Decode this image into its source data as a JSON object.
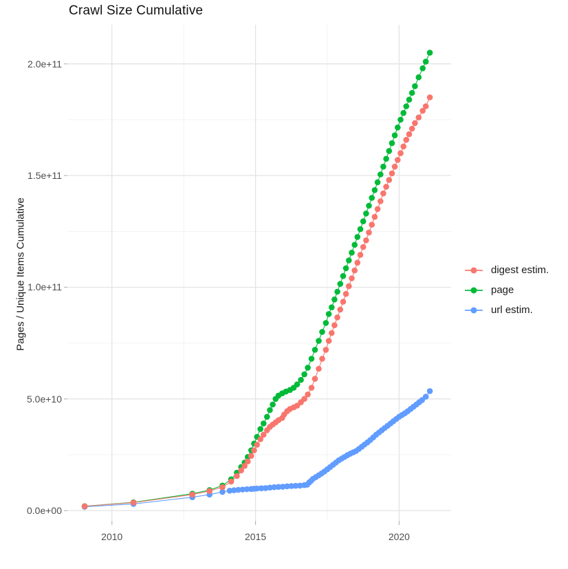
{
  "chart_data": {
    "type": "scatter",
    "title": "Crawl Size Cumulative",
    "xlabel": "",
    "ylabel": "Pages / Unique Items Cumulative",
    "grid": true,
    "legend_position": "right",
    "xlim": [
      2008.45,
      2021.81
    ],
    "ylim": [
      -5500000000.0,
      217500000000.0
    ],
    "x_ticks": [
      {
        "value": 2010,
        "label": "2010"
      },
      {
        "value": 2015,
        "label": "2015"
      },
      {
        "value": 2020,
        "label": "2020"
      }
    ],
    "x_minor": [
      2012.5,
      2017.5
    ],
    "y_ticks": [
      {
        "value": 0,
        "label": "0.0e+00"
      },
      {
        "value": 50000000000.0,
        "label": "5.0e+10"
      },
      {
        "value": 100000000000.0,
        "label": "1.0e+11"
      },
      {
        "value": 150000000000.0,
        "label": "1.5e+11"
      },
      {
        "value": 200000000000.0,
        "label": "2.0e+11"
      }
    ],
    "y_minor": [
      25000000000.0,
      75000000000.0,
      125000000000.0,
      175000000000.0
    ],
    "series": [
      {
        "name": "digest estim.",
        "color": "#F8766D",
        "points": [
          [
            2009.05,
            1950000000.0
          ],
          [
            2010.75,
            3600000000.0
          ],
          [
            2012.8,
            7200000000.0
          ],
          [
            2013.4,
            8800000000.0
          ],
          [
            2013.85,
            10500000000.0
          ],
          [
            2014.15,
            13000000000.0
          ],
          [
            2014.35,
            15500000000.0
          ],
          [
            2014.5,
            18000000000.0
          ],
          [
            2014.62,
            20000000000.0
          ],
          [
            2014.73,
            22000000000.0
          ],
          [
            2014.85,
            24500000000.0
          ],
          [
            2014.95,
            27000000000.0
          ],
          [
            2015.05,
            29500000000.0
          ],
          [
            2015.17,
            32000000000.0
          ],
          [
            2015.28,
            34000000000.0
          ],
          [
            2015.4,
            36000000000.0
          ],
          [
            2015.5,
            37500000000.0
          ],
          [
            2015.6,
            38500000000.0
          ],
          [
            2015.7,
            39500000000.0
          ],
          [
            2015.8,
            40500000000.0
          ],
          [
            2015.93,
            41500000000.0
          ],
          [
            2016.0,
            43000000000.0
          ],
          [
            2016.1,
            44500000000.0
          ],
          [
            2016.2,
            45500000000.0
          ],
          [
            2016.33,
            46200000000.0
          ],
          [
            2016.45,
            47000000000.0
          ],
          [
            2016.58,
            48500000000.0
          ],
          [
            2016.7,
            50000000000.0
          ],
          [
            2016.82,
            52000000000.0
          ],
          [
            2016.95,
            55000000000.0
          ],
          [
            2017.07,
            59000000000.0
          ],
          [
            2017.2,
            63500000000.0
          ],
          [
            2017.32,
            68000000000.0
          ],
          [
            2017.45,
            72000000000.0
          ],
          [
            2017.55,
            76000000000.0
          ],
          [
            2017.65,
            79500000000.0
          ],
          [
            2017.75,
            83000000000.0
          ],
          [
            2017.85,
            86500000000.0
          ],
          [
            2017.95,
            90000000000.0
          ],
          [
            2018.05,
            93500000000.0
          ],
          [
            2018.15,
            97000000000.0
          ],
          [
            2018.25,
            100500000000.0
          ],
          [
            2018.35,
            104000000000.0
          ],
          [
            2018.45,
            107500000000.0
          ],
          [
            2018.55,
            111000000000.0
          ],
          [
            2018.65,
            114500000000.0
          ],
          [
            2018.75,
            118000000000.0
          ],
          [
            2018.85,
            121000000000.0
          ],
          [
            2018.95,
            124500000000.0
          ],
          [
            2019.05,
            128000000000.0
          ],
          [
            2019.15,
            131500000000.0
          ],
          [
            2019.25,
            135000000000.0
          ],
          [
            2019.35,
            138500000000.0
          ],
          [
            2019.45,
            142000000000.0
          ],
          [
            2019.55,
            145000000000.0
          ],
          [
            2019.65,
            148000000000.0
          ],
          [
            2019.75,
            151000000000.0
          ],
          [
            2019.85,
            154000000000.0
          ],
          [
            2019.95,
            157000000000.0
          ],
          [
            2020.05,
            160000000000.0
          ],
          [
            2020.15,
            163000000000.0
          ],
          [
            2020.25,
            166000000000.0
          ],
          [
            2020.35,
            168500000000.0
          ],
          [
            2020.45,
            171000000000.0
          ],
          [
            2020.55,
            173500000000.0
          ],
          [
            2020.68,
            176000000000.0
          ],
          [
            2020.82,
            179000000000.0
          ],
          [
            2020.93,
            181000000000.0
          ],
          [
            2021.07,
            185000000000.0
          ]
        ]
      },
      {
        "name": "page",
        "color": "#00BA38",
        "points": [
          [
            2009.05,
            2000000000.0
          ],
          [
            2010.75,
            3700000000.0
          ],
          [
            2012.8,
            7600000000.0
          ],
          [
            2013.4,
            9200000000.0
          ],
          [
            2013.85,
            11200000000.0
          ],
          [
            2014.15,
            14000000000.0
          ],
          [
            2014.35,
            17000000000.0
          ],
          [
            2014.5,
            19500000000.0
          ],
          [
            2014.62,
            21500000000.0
          ],
          [
            2014.73,
            24000000000.0
          ],
          [
            2014.85,
            27000000000.0
          ],
          [
            2014.95,
            30000000000.0
          ],
          [
            2015.05,
            33000000000.0
          ],
          [
            2015.17,
            36500000000.0
          ],
          [
            2015.28,
            39000000000.0
          ],
          [
            2015.4,
            42000000000.0
          ],
          [
            2015.5,
            45000000000.0
          ],
          [
            2015.6,
            47500000000.0
          ],
          [
            2015.7,
            50000000000.0
          ],
          [
            2015.8,
            51500000000.0
          ],
          [
            2015.93,
            52500000000.0
          ],
          [
            2016.06,
            53300000000.0
          ],
          [
            2016.2,
            54000000000.0
          ],
          [
            2016.33,
            55000000000.0
          ],
          [
            2016.45,
            56500000000.0
          ],
          [
            2016.58,
            58500000000.0
          ],
          [
            2016.7,
            61000000000.0
          ],
          [
            2016.82,
            64000000000.0
          ],
          [
            2016.95,
            68000000000.0
          ],
          [
            2017.07,
            72000000000.0
          ],
          [
            2017.2,
            76000000000.0
          ],
          [
            2017.32,
            80000000000.0
          ],
          [
            2017.45,
            84000000000.0
          ],
          [
            2017.55,
            88000000000.0
          ],
          [
            2017.65,
            91000000000.0
          ],
          [
            2017.75,
            94500000000.0
          ],
          [
            2017.85,
            98000000000.0
          ],
          [
            2017.95,
            101500000000.0
          ],
          [
            2018.05,
            105000000000.0
          ],
          [
            2018.15,
            108500000000.0
          ],
          [
            2018.25,
            112000000000.0
          ],
          [
            2018.35,
            115500000000.0
          ],
          [
            2018.45,
            119000000000.0
          ],
          [
            2018.55,
            122500000000.0
          ],
          [
            2018.65,
            126000000000.0
          ],
          [
            2018.75,
            129500000000.0
          ],
          [
            2018.85,
            133000000000.0
          ],
          [
            2018.95,
            136500000000.0
          ],
          [
            2019.05,
            140000000000.0
          ],
          [
            2019.15,
            143500000000.0
          ],
          [
            2019.25,
            147000000000.0
          ],
          [
            2019.35,
            150500000000.0
          ],
          [
            2019.45,
            154000000000.0
          ],
          [
            2019.55,
            157500000000.0
          ],
          [
            2019.65,
            161000000000.0
          ],
          [
            2019.75,
            164500000000.0
          ],
          [
            2019.85,
            168000000000.0
          ],
          [
            2019.95,
            171500000000.0
          ],
          [
            2020.05,
            175000000000.0
          ],
          [
            2020.15,
            178000000000.0
          ],
          [
            2020.25,
            181000000000.0
          ],
          [
            2020.35,
            184000000000.0
          ],
          [
            2020.45,
            187000000000.0
          ],
          [
            2020.55,
            190000000000.0
          ],
          [
            2020.68,
            194000000000.0
          ],
          [
            2020.82,
            198000000000.0
          ],
          [
            2020.93,
            201000000000.0
          ],
          [
            2021.07,
            205000000000.0
          ]
        ]
      },
      {
        "name": "url estim.",
        "color": "#619CFF",
        "points": [
          [
            2009.05,
            1700000000.0
          ],
          [
            2010.75,
            3000000000.0
          ],
          [
            2012.8,
            6000000000.0
          ],
          [
            2013.4,
            7200000000.0
          ],
          [
            2013.85,
            8400000000.0
          ],
          [
            2014.1,
            8900000000.0
          ],
          [
            2014.25,
            9100000000.0
          ],
          [
            2014.4,
            9300000000.0
          ],
          [
            2014.55,
            9450000000.0
          ],
          [
            2014.7,
            9600000000.0
          ],
          [
            2014.85,
            9700000000.0
          ],
          [
            2014.95,
            9800000000.0
          ],
          [
            2015.05,
            9900000000.0
          ],
          [
            2015.2,
            10000000000.0
          ],
          [
            2015.35,
            10100000000.0
          ],
          [
            2015.5,
            10300000000.0
          ],
          [
            2015.65,
            10500000000.0
          ],
          [
            2015.8,
            10600000000.0
          ],
          [
            2015.95,
            10700000000.0
          ],
          [
            2016.1,
            10900000000.0
          ],
          [
            2016.25,
            11000000000.0
          ],
          [
            2016.4,
            11100000000.0
          ],
          [
            2016.55,
            11200000000.0
          ],
          [
            2016.7,
            11400000000.0
          ],
          [
            2016.8,
            11600000000.0
          ],
          [
            2016.87,
            12600000000.0
          ],
          [
            2016.93,
            13300000000.0
          ],
          [
            2017.0,
            14200000000.0
          ],
          [
            2017.1,
            15000000000.0
          ],
          [
            2017.2,
            15800000000.0
          ],
          [
            2017.3,
            16600000000.0
          ],
          [
            2017.4,
            17500000000.0
          ],
          [
            2017.5,
            18500000000.0
          ],
          [
            2017.6,
            19500000000.0
          ],
          [
            2017.7,
            20500000000.0
          ],
          [
            2017.8,
            21500000000.0
          ],
          [
            2017.9,
            22500000000.0
          ],
          [
            2018.0,
            23300000000.0
          ],
          [
            2018.1,
            24000000000.0
          ],
          [
            2018.2,
            24800000000.0
          ],
          [
            2018.3,
            25500000000.0
          ],
          [
            2018.4,
            26100000000.0
          ],
          [
            2018.5,
            26700000000.0
          ],
          [
            2018.6,
            27600000000.0
          ],
          [
            2018.7,
            28600000000.0
          ],
          [
            2018.8,
            29600000000.0
          ],
          [
            2018.9,
            30600000000.0
          ],
          [
            2019.0,
            31600000000.0
          ],
          [
            2019.1,
            32800000000.0
          ],
          [
            2019.2,
            34000000000.0
          ],
          [
            2019.3,
            35000000000.0
          ],
          [
            2019.4,
            36000000000.0
          ],
          [
            2019.5,
            37000000000.0
          ],
          [
            2019.6,
            38000000000.0
          ],
          [
            2019.7,
            39000000000.0
          ],
          [
            2019.8,
            40000000000.0
          ],
          [
            2019.9,
            41000000000.0
          ],
          [
            2020.0,
            42000000000.0
          ],
          [
            2020.1,
            42800000000.0
          ],
          [
            2020.2,
            43600000000.0
          ],
          [
            2020.3,
            44500000000.0
          ],
          [
            2020.4,
            45500000000.0
          ],
          [
            2020.5,
            46500000000.0
          ],
          [
            2020.6,
            47500000000.0
          ],
          [
            2020.7,
            48500000000.0
          ],
          [
            2020.8,
            49500000000.0
          ],
          [
            2020.93,
            51000000000.0
          ],
          [
            2021.07,
            53500000000.0
          ]
        ]
      }
    ],
    "style": {
      "grid_major_color": "#e3e3e3",
      "grid_minor_color": "#efefef",
      "tick_mark_color": "#b8b8b8",
      "point_radius": 4.3,
      "line_width": 1.1
    }
  }
}
